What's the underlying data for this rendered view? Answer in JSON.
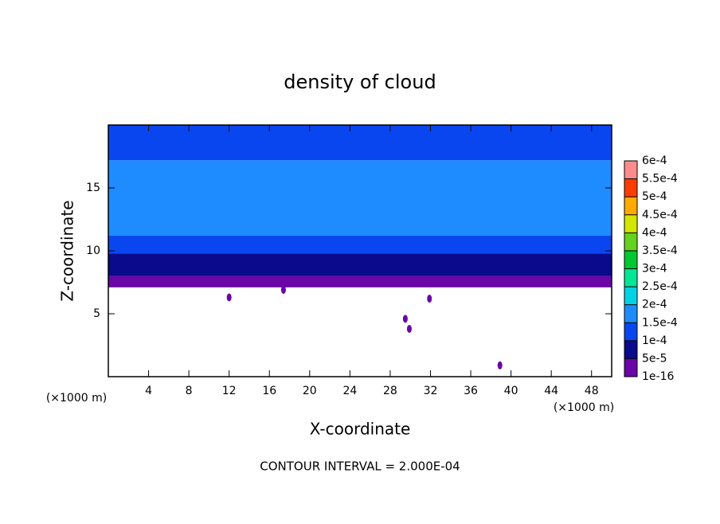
{
  "chart_data": {
    "type": "contour",
    "title": "density of cloud",
    "x_label": "X-coordinate",
    "y_label": "Z-coordinate",
    "x_unit": "(×1000 m)",
    "y_unit": "(×1000 m)",
    "footer": "CONTOUR INTERVAL = 2.000E-04",
    "xlim": [
      0,
      50
    ],
    "ylim": [
      0,
      20
    ],
    "xticks": [
      4,
      8,
      12,
      16,
      20,
      24,
      28,
      32,
      36,
      40,
      44,
      48
    ],
    "yticks": [
      5,
      10,
      15
    ],
    "layers": [
      {
        "z": [
          7.1,
          8.0
        ],
        "value": 2e-05
      },
      {
        "z": [
          8.0,
          9.8
        ],
        "value": 7e-05
      },
      {
        "z": [
          9.8,
          11.2
        ],
        "value": 0.00012
      },
      {
        "z": [
          11.2,
          17.2
        ],
        "value": 0.00016
      },
      {
        "z": [
          17.2,
          20
        ],
        "value": 0.00013
      }
    ],
    "patches": [
      {
        "x": 29.5,
        "z": 4.6,
        "value": 2e-05
      },
      {
        "x": 29.9,
        "z": 3.8,
        "value": 2e-05
      },
      {
        "x": 38.9,
        "z": 0.9,
        "value": 2e-05
      },
      {
        "x": 31.9,
        "z": 6.2,
        "value": 2e-05
      },
      {
        "x": 12.0,
        "z": 6.3,
        "value": 2e-05
      },
      {
        "x": 17.4,
        "z": 6.9,
        "value": 2e-05
      }
    ],
    "colorbar": {
      "ticks": [
        {
          "value": 1e-16,
          "label": "1e-16"
        },
        {
          "value": 5e-05,
          "label": "5e-5"
        },
        {
          "value": 0.0001,
          "label": "1e-4"
        },
        {
          "value": 0.00015,
          "label": "1.5e-4"
        },
        {
          "value": 0.0002,
          "label": "2e-4"
        },
        {
          "value": 0.00025,
          "label": "2.5e-4"
        },
        {
          "value": 0.0003,
          "label": "3e-4"
        },
        {
          "value": 0.00035,
          "label": "3.5e-4"
        },
        {
          "value": 0.0004,
          "label": "4e-4"
        },
        {
          "value": 0.00045,
          "label": "4.5e-4"
        },
        {
          "value": 0.0005,
          "label": "5e-4"
        },
        {
          "value": 0.00055,
          "label": "5.5e-4"
        },
        {
          "value": 0.0006,
          "label": "6e-4"
        }
      ],
      "colors": [
        "#6a06a8",
        "#0a0a8c",
        "#0a46f0",
        "#1e8cff",
        "#00d2e6",
        "#00e696",
        "#00c832",
        "#64d21e",
        "#d2e600",
        "#ffaa00",
        "#ff3c00",
        "#ff8c8c"
      ]
    }
  }
}
